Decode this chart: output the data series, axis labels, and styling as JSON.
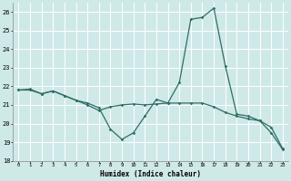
{
  "title": "",
  "xlabel": "Humidex (Indice chaleur)",
  "xlim": [
    -0.5,
    23.5
  ],
  "ylim": [
    18,
    26.5
  ],
  "yticks": [
    18,
    19,
    20,
    21,
    22,
    23,
    24,
    25,
    26
  ],
  "xticks": [
    0,
    1,
    2,
    3,
    4,
    5,
    6,
    7,
    8,
    9,
    10,
    11,
    12,
    13,
    14,
    15,
    16,
    17,
    18,
    19,
    20,
    21,
    22,
    23
  ],
  "background_color": "#cfe9e9",
  "grid_color": "#ffffff",
  "line_color": "#2d6e62",
  "series1_x": [
    0,
    1,
    2,
    3,
    4,
    5,
    6,
    7,
    8,
    9,
    10,
    11,
    12,
    13,
    14,
    15,
    16,
    17,
    18,
    19,
    20,
    21,
    22,
    23
  ],
  "series1_y": [
    21.8,
    21.8,
    21.6,
    21.75,
    21.5,
    21.25,
    21.1,
    20.85,
    19.7,
    19.15,
    19.5,
    20.4,
    21.3,
    21.1,
    22.2,
    25.6,
    25.7,
    26.2,
    23.1,
    20.5,
    20.4,
    20.15,
    19.5,
    18.6
  ],
  "series2_x": [
    0,
    1,
    2,
    3,
    4,
    5,
    6,
    7,
    8,
    9,
    10,
    11,
    12,
    13,
    14,
    15,
    16,
    17,
    18,
    19,
    20,
    21,
    22,
    23
  ],
  "series2_y": [
    21.8,
    21.85,
    21.6,
    21.75,
    21.5,
    21.25,
    21.0,
    20.7,
    20.9,
    21.0,
    21.05,
    21.0,
    21.05,
    21.1,
    21.1,
    21.1,
    21.1,
    20.9,
    20.6,
    20.4,
    20.25,
    20.15,
    19.8,
    18.65
  ]
}
